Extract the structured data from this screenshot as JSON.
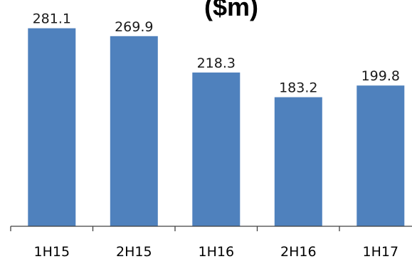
{
  "chart_data": {
    "type": "bar",
    "title": "($m)",
    "categories": [
      "1H15",
      "2H15",
      "1H16",
      "2H16",
      "1H17"
    ],
    "values": [
      281.1,
      269.9,
      218.3,
      183.2,
      199.8
    ],
    "value_labels": [
      "281.1",
      "269.9",
      "218.3",
      "183.2",
      "199.8"
    ],
    "xlabel": "",
    "ylabel": "",
    "ylim": [
      0,
      310
    ],
    "grid": false,
    "legend": "none",
    "colors": {
      "bar": "#4f81bd",
      "axis": "#404040",
      "text": "#000000"
    }
  }
}
